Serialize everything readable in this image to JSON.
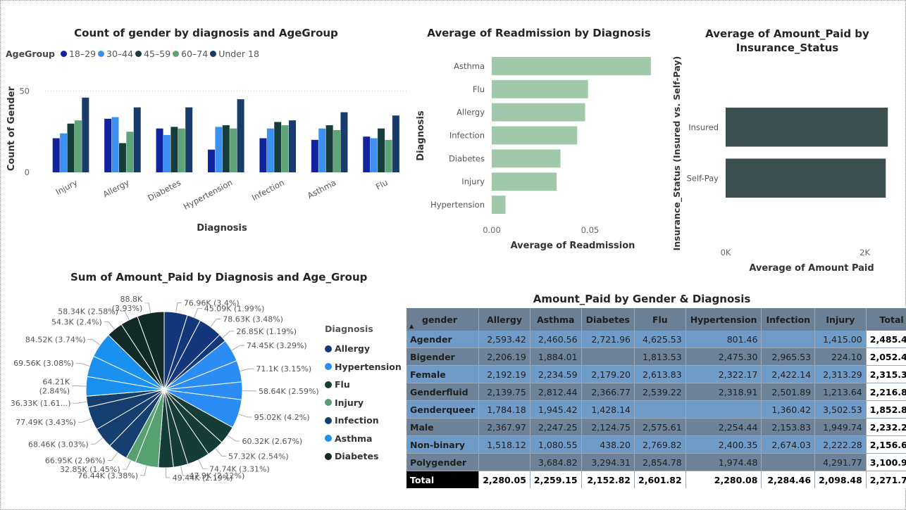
{
  "chart_data": [
    {
      "id": "count_by_diagnosis",
      "type": "bar",
      "title": "Count of gender by diagnosis and AgeGroup",
      "legend_title": "AgeGroup",
      "xlabel": "Diagnosis",
      "ylabel": "Count of Gender",
      "ylim": [
        0,
        55
      ],
      "yticks": [
        0,
        50
      ],
      "legend_position": "top-left",
      "categories": [
        "Injury",
        "Allergy",
        "Diabetes",
        "Hypertension",
        "Infection",
        "Asthma",
        "Flu"
      ],
      "series": [
        {
          "name": "18–29",
          "color": "#12239e",
          "values": [
            21,
            33,
            27,
            14,
            21,
            20,
            22
          ]
        },
        {
          "name": "30–44",
          "color": "#3d8ff0",
          "values": [
            24,
            34,
            23,
            28,
            27,
            27,
            21
          ]
        },
        {
          "name": "45–59",
          "color": "#163d39",
          "values": [
            30,
            18,
            28,
            29,
            31,
            29,
            27
          ]
        },
        {
          "name": "60–74",
          "color": "#5fa477",
          "values": [
            32,
            25,
            27,
            27,
            29,
            26,
            20
          ]
        },
        {
          "name": "Under 18",
          "color": "#193b6b",
          "values": [
            46,
            40,
            40,
            45,
            32,
            37,
            35
          ]
        }
      ]
    },
    {
      "id": "readmission",
      "type": "bar",
      "orientation": "horizontal",
      "title": "Average of Readmission by Diagnosis",
      "xlabel": "Average of Readmission",
      "ylabel": "Diagnosis",
      "xlim": [
        0,
        0.085
      ],
      "xticks": [
        0,
        0.05
      ],
      "xtick_labels": [
        "0.00",
        "0.05"
      ],
      "color": "#9fc9aa",
      "categories": [
        "Asthma",
        "Flu",
        "Allergy",
        "Infection",
        "Diabetes",
        "Injury",
        "Hypertension"
      ],
      "values": [
        0.081,
        0.049,
        0.0475,
        0.0435,
        0.035,
        0.033,
        0.007
      ]
    },
    {
      "id": "amount_by_insurance",
      "type": "bar",
      "orientation": "horizontal",
      "title": "Average of Amount_Paid by Insurance_Status",
      "title_lines": [
        "Average of Amount_Paid by",
        "Insurance_Status"
      ],
      "xlabel": "Average of Amount Paid",
      "ylabel": "Insurance_Status (Insured vs. Self-Pay)",
      "xlim": [
        0,
        2500
      ],
      "xticks": [
        0,
        2000
      ],
      "xtick_labels": [
        "0K",
        "2K"
      ],
      "color": "#3c4e4d",
      "categories": [
        "Insured",
        "Self-Pay"
      ],
      "values": [
        2330,
        2300
      ]
    },
    {
      "id": "pie_amount",
      "type": "pie",
      "title": "Sum of Amount_Paid by Diagnosis and Age_Group",
      "legend_title": "Diagnosis",
      "legend_position": "right",
      "legend": [
        {
          "name": "Allergy",
          "color": "#12377a"
        },
        {
          "name": "Hypertension",
          "color": "#2b8cf4"
        },
        {
          "name": "Flu",
          "color": "#153d37"
        },
        {
          "name": "Injury",
          "color": "#57a072"
        },
        {
          "name": "Infection",
          "color": "#153f6e"
        },
        {
          "name": "Asthma",
          "color": "#1a90f0"
        },
        {
          "name": "Diabetes",
          "color": "#112a26"
        }
      ],
      "slices": [
        {
          "label": "76.96K (3.4%)",
          "value": 76.96,
          "color": "#12377a"
        },
        {
          "label": "45.09K (1.99%)",
          "value": 45.09,
          "color": "#12377a"
        },
        {
          "label": "78.63K (3.48%)",
          "value": 78.63,
          "color": "#12377a"
        },
        {
          "label": "26.85K (1.19%)",
          "value": 26.85,
          "color": "#12377a"
        },
        {
          "label": "74.45K (3.29%)",
          "value": 74.45,
          "color": "#2b8cf4"
        },
        {
          "label": "71.1K (3.15%)",
          "value": 71.1,
          "color": "#2b8cf4"
        },
        {
          "label": "58.64K (2.59%)",
          "value": 58.64,
          "color": "#2b8cf4"
        },
        {
          "label": "95.02K (4.2%)",
          "value": 95.02,
          "color": "#2b8cf4"
        },
        {
          "label": "60.32K (2.67%)",
          "value": 60.32,
          "color": "#153d37"
        },
        {
          "label": "57.32K (2.54%)",
          "value": 57.32,
          "color": "#153d37"
        },
        {
          "label": "74.74K (3.31%)",
          "value": 74.74,
          "color": "#153d37"
        },
        {
          "label": "47.9K (2.12%)",
          "value": 47.9,
          "color": "#153d37"
        },
        {
          "label": "49.44K (2.19%)",
          "value": 49.44,
          "color": "#153d37"
        },
        {
          "label": "76.44K (3.38%)",
          "value": 76.44,
          "color": "#57a072"
        },
        {
          "label": "32.85K (1.45%)",
          "value": 32.85,
          "color": "#57a072"
        },
        {
          "label": "66.95K (2.96%)",
          "value": 66.95,
          "color": "#153f6e"
        },
        {
          "label": "68.46K (3.03%)",
          "value": 68.46,
          "color": "#153f6e"
        },
        {
          "label": "77.49K (3.43%)",
          "value": 77.49,
          "color": "#153f6e"
        },
        {
          "label": "36.33K (1.61...)",
          "value": 36.33,
          "color": "#153f6e"
        },
        {
          "label": "64.21K (2.84%)",
          "label_lines": [
            "64.21K",
            "(2.84%)"
          ],
          "value": 64.21,
          "color": "#1a90f0"
        },
        {
          "label": "69.56K (3.08%)",
          "value": 69.56,
          "color": "#1a90f0"
        },
        {
          "label": "84.52K (3.74%)",
          "value": 84.52,
          "color": "#1a90f0"
        },
        {
          "label": "54.3K (2.4%)",
          "value": 54.3,
          "color": "#112a26"
        },
        {
          "label": "58.34K (2.58%)",
          "value": 58.34,
          "color": "#112a26"
        },
        {
          "label": "88.8K (3.93%)",
          "label_lines": [
            "88.8K",
            "(3.93%)"
          ],
          "value": 88.8,
          "color": "#112a26"
        }
      ]
    },
    {
      "id": "matrix",
      "type": "table",
      "title": "Amount_Paid by Gender & Diagnosis",
      "row_header": "gender",
      "columns": [
        "Allergy",
        "Asthma",
        "Diabetes",
        "Flu",
        "Hypertension",
        "Infection",
        "Injury",
        "Total"
      ],
      "rows": [
        {
          "label": "Agender",
          "cells": [
            "2,593.42",
            "2,460.56",
            "2,721.96",
            "4,625.53",
            "801.46",
            "",
            "1,415.00",
            "2,485.44"
          ]
        },
        {
          "label": "Bigender",
          "cells": [
            "2,206.19",
            "1,884.01",
            "",
            "1,813.53",
            "2,475.30",
            "2,965.53",
            "224.10",
            "2,052.40"
          ]
        },
        {
          "label": "Female",
          "cells": [
            "2,192.19",
            "2,234.59",
            "2,179.20",
            "2,613.83",
            "2,322.17",
            "2,422.14",
            "2,313.29",
            "2,315.33"
          ]
        },
        {
          "label": "Genderfluid",
          "cells": [
            "2,139.75",
            "2,812.44",
            "2,366.77",
            "2,539.22",
            "2,318.91",
            "2,501.89",
            "1,213.64",
            "2,216.86"
          ]
        },
        {
          "label": "Genderqueer",
          "cells": [
            "1,784.18",
            "1,945.42",
            "1,428.14",
            "",
            "",
            "1,360.42",
            "3,502.53",
            "1,852.80"
          ]
        },
        {
          "label": "Male",
          "cells": [
            "2,367.97",
            "2,247.25",
            "2,124.75",
            "2,575.61",
            "2,254.44",
            "2,153.83",
            "1,949.74",
            "2,232.29"
          ]
        },
        {
          "label": "Non-binary",
          "cells": [
            "1,518.12",
            "1,080.55",
            "438.20",
            "2,769.82",
            "2,400.35",
            "2,674.03",
            "2,222.28",
            "2,156.63"
          ]
        },
        {
          "label": "Polygender",
          "cells": [
            "",
            "3,684.82",
            "3,294.31",
            "2,854.78",
            "1,974.48",
            "",
            "4,291.77",
            "3,100.95"
          ]
        }
      ],
      "total_row": {
        "label": "Total",
        "cells": [
          "2,280.05",
          "2,259.15",
          "2,152.82",
          "2,601.82",
          "2,280.08",
          "2,284.46",
          "2,098.48",
          "2,271.72"
        ]
      }
    }
  ]
}
